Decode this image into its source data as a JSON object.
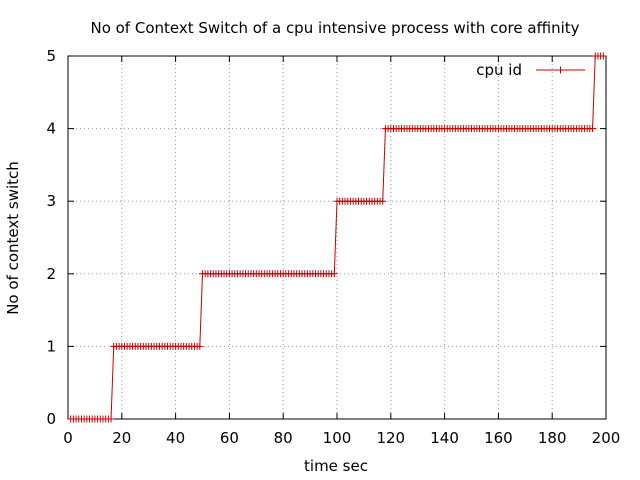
{
  "chart_data": {
    "type": "line",
    "title": "No of Context Switch of a cpu intensive process with core affinity",
    "xlabel": "time sec",
    "ylabel": "No of context switch",
    "xlim": [
      0,
      200
    ],
    "ylim": [
      0,
      5
    ],
    "xticks": [
      0,
      20,
      40,
      60,
      80,
      100,
      120,
      140,
      160,
      180,
      200
    ],
    "yticks": [
      0,
      1,
      2,
      3,
      4,
      5
    ],
    "grid": true,
    "legend_position": "top-right",
    "series": [
      {
        "name": "cpu id",
        "color": "#cc0000",
        "marker": "plus",
        "sample_interval_sec": 1,
        "steps": [
          {
            "x_start": 1,
            "x_end": 16,
            "y": 0
          },
          {
            "x_start": 17,
            "x_end": 49,
            "y": 1
          },
          {
            "x_start": 50,
            "x_end": 99,
            "y": 2
          },
          {
            "x_start": 100,
            "x_end": 117,
            "y": 3
          },
          {
            "x_start": 118,
            "x_end": 195,
            "y": 4
          },
          {
            "x_start": 196,
            "x_end": 199,
            "y": 5
          }
        ]
      }
    ]
  }
}
